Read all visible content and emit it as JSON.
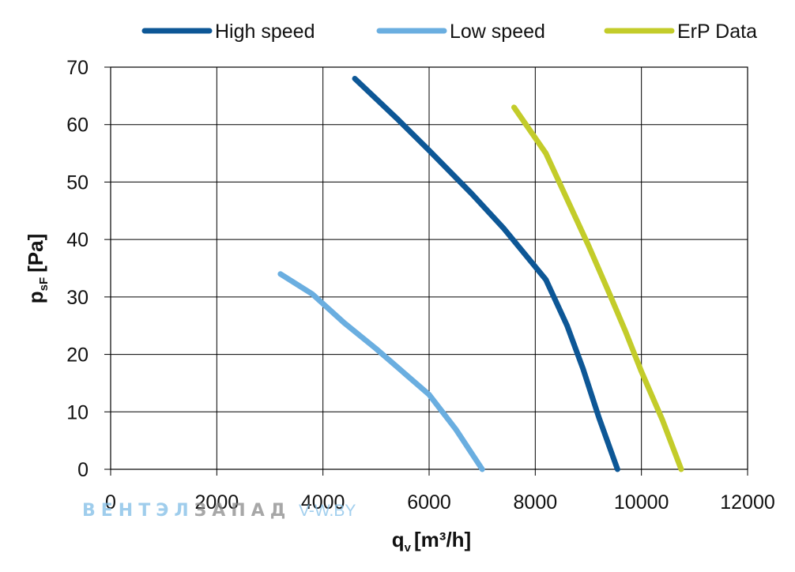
{
  "chart_data": {
    "type": "line",
    "title": "",
    "xlabel": {
      "main": "q",
      "sub": "v",
      "rest": "[m³/h]"
    },
    "ylabel": {
      "main": "p",
      "sub": "sF",
      "rest": "[Pa]"
    },
    "xlim": [
      0,
      12000
    ],
    "ylim": [
      0,
      70
    ],
    "xticks": [
      0,
      2000,
      4000,
      6000,
      8000,
      10000,
      12000
    ],
    "yticks": [
      0,
      10,
      20,
      30,
      40,
      50,
      60,
      70
    ],
    "grid": true,
    "legend_position": "top",
    "series": [
      {
        "name": "High speed",
        "color": "#0d5796",
        "points": [
          [
            4600,
            68
          ],
          [
            5400,
            61
          ],
          [
            6000,
            55.5
          ],
          [
            6800,
            48
          ],
          [
            7400,
            42
          ],
          [
            8200,
            33
          ],
          [
            8600,
            25
          ],
          [
            8900,
            17.5
          ],
          [
            9200,
            9
          ],
          [
            9550,
            0
          ]
        ]
      },
      {
        "name": "Low speed",
        "color": "#6aaee0",
        "points": [
          [
            3200,
            34
          ],
          [
            3800,
            30.5
          ],
          [
            4400,
            25.5
          ],
          [
            5000,
            21
          ],
          [
            5500,
            17
          ],
          [
            6000,
            13
          ],
          [
            6500,
            7
          ],
          [
            7000,
            0
          ]
        ]
      },
      {
        "name": "ErP Data",
        "color": "#c3cc2a",
        "points": [
          [
            7600,
            63
          ],
          [
            8200,
            55
          ],
          [
            8600,
            47
          ],
          [
            9000,
            39
          ],
          [
            9400,
            30.5
          ],
          [
            9700,
            24
          ],
          [
            10000,
            17
          ],
          [
            10400,
            8.5
          ],
          [
            10750,
            0
          ]
        ]
      }
    ]
  },
  "watermark": {
    "part1": "ВЕНТЭЛ",
    "part2": "ЗАПАД",
    "part3": "V-W.BY"
  }
}
